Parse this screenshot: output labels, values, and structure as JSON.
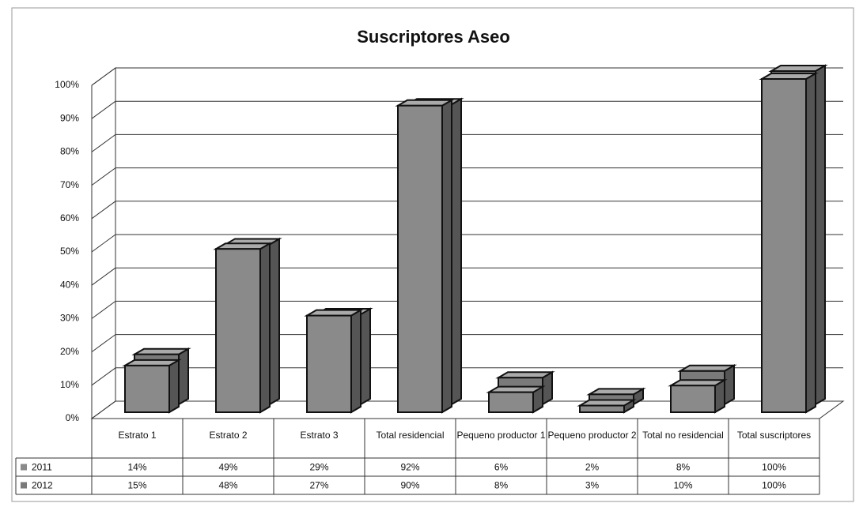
{
  "chart_data": {
    "type": "bar3d",
    "title": "Suscriptores Aseo",
    "categories": [
      "Estrato 1",
      "Estrato 2",
      "Estrato 3",
      "Total residencial",
      "Pequeno productor 1",
      "Pequeno productor 2",
      "Total no residencial",
      "Total suscriptores"
    ],
    "series": [
      {
        "name": "2011",
        "color": "#8a8a8a",
        "values": [
          14,
          49,
          29,
          92,
          6,
          2,
          8,
          100
        ],
        "value_labels": [
          "14%",
          "49%",
          "29%",
          "92%",
          "6%",
          "2%",
          "8%",
          "100%"
        ]
      },
      {
        "name": "2012",
        "color": "#7a7a7a",
        "values": [
          15,
          48,
          27,
          90,
          8,
          3,
          10,
          100
        ],
        "value_labels": [
          "15%",
          "48%",
          "27%",
          "90%",
          "8%",
          "3%",
          "10%",
          "100%"
        ]
      }
    ],
    "ylim": [
      0,
      100
    ],
    "yticks": [
      {
        "value": 0,
        "label": "0%"
      },
      {
        "value": 10,
        "label": "10%"
      },
      {
        "value": 20,
        "label": "20%"
      },
      {
        "value": 30,
        "label": "30%"
      },
      {
        "value": 40,
        "label": "40%"
      },
      {
        "value": 50,
        "label": "50%"
      },
      {
        "value": 60,
        "label": "60%"
      },
      {
        "value": 70,
        "label": "70%"
      },
      {
        "value": 80,
        "label": "80%"
      },
      {
        "value": 90,
        "label": "90%"
      },
      {
        "value": 100,
        "label": "100%"
      }
    ],
    "grid": true,
    "data_table": true
  }
}
